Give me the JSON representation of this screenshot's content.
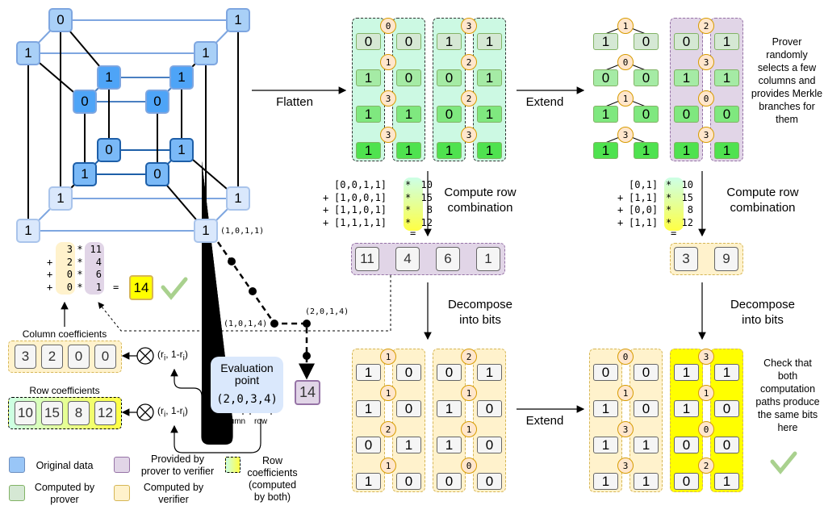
{
  "cube": {
    "nodes": [
      {
        "v": "0",
        "t": "back"
      },
      {
        "v": "1",
        "t": "back"
      },
      {
        "v": "1",
        "t": "back"
      },
      {
        "v": "1",
        "t": "back"
      },
      {
        "v": "1",
        "t": "inner1"
      },
      {
        "v": "1",
        "t": "inner1"
      },
      {
        "v": "0",
        "t": "inner1"
      },
      {
        "v": "0",
        "t": "inner1"
      },
      {
        "v": "0",
        "t": "inner2"
      },
      {
        "v": "1",
        "t": "inner2"
      },
      {
        "v": "1",
        "t": "inner2"
      },
      {
        "v": "0",
        "t": "inner2"
      },
      {
        "v": "1",
        "t": "front"
      },
      {
        "v": "1",
        "t": "front"
      },
      {
        "v": "1",
        "t": "front"
      },
      {
        "v": "1",
        "t": "front"
      }
    ],
    "corner_label": "(1,0,1,1)"
  },
  "path": {
    "p1": "(1,0,1,4)",
    "p2": "(2,0,1,4)",
    "result": "14"
  },
  "labels": {
    "flatten": "Flatten",
    "extend": "Extend",
    "extend2": "Extend",
    "compute1": "Compute row combination",
    "compute2": "Compute row combination",
    "decompose1": "Decompose into bits",
    "decompose2": "Decompose into bits",
    "prover_note": "Prover randomly selects a few columns and provides Merkle branches for them",
    "check_note": "Check that both computation paths produce the same bits here"
  },
  "flat_groups": [
    {
      "nodes": [
        "0",
        "1",
        "3",
        "3"
      ],
      "left": [
        "0",
        "1",
        "1",
        "1"
      ],
      "right": [
        "0",
        "0",
        "1",
        "1"
      ]
    },
    {
      "nodes": [
        "3",
        "2",
        "2",
        "3"
      ],
      "left": [
        "1",
        "0",
        "0",
        "1"
      ],
      "right": [
        "1",
        "1",
        "1",
        "1"
      ]
    }
  ],
  "ext_groups": [
    {
      "nodes": [
        "1",
        "0",
        "1",
        "3"
      ],
      "left": [
        "1",
        "0",
        "1",
        "1"
      ],
      "right": [
        "0",
        "0",
        "0",
        "1"
      ]
    },
    {
      "nodes": [
        "2",
        "3",
        "0",
        "3"
      ],
      "left": [
        "0",
        "1",
        "0",
        "1"
      ],
      "right": [
        "1",
        "1",
        "0",
        "1"
      ]
    }
  ],
  "bits_groups": [
    {
      "nodes": [
        "1",
        "1",
        "2",
        "1"
      ],
      "left": [
        "1",
        "1",
        "0",
        "1"
      ],
      "right": [
        "0",
        "0",
        "1",
        "0"
      ]
    },
    {
      "nodes": [
        "2",
        "1",
        "1",
        "0"
      ],
      "left": [
        "0",
        "1",
        "1",
        "0"
      ],
      "right": [
        "1",
        "0",
        "0",
        "0"
      ]
    }
  ],
  "ext_bits_groups": [
    {
      "nodes": [
        "0",
        "1",
        "3",
        "3"
      ],
      "left": [
        "0",
        "1",
        "1",
        "1"
      ],
      "right": [
        "0",
        "0",
        "1",
        "1"
      ]
    },
    {
      "nodes": [
        "3",
        "1",
        "0",
        "2"
      ],
      "left": [
        "1",
        "1",
        "0",
        "0"
      ],
      "right": [
        "1",
        "0",
        "0",
        "1"
      ]
    }
  ],
  "row_comb1": {
    "vectors": [
      "[0,0,1,1]",
      "[1,0,0,1]",
      "[1,1,0,1]",
      "[1,1,1,1]"
    ],
    "ops": [
      " ",
      "+",
      "+",
      "+"
    ],
    "coeffs": [
      "10",
      "15",
      "8",
      "12"
    ],
    "eq": "=",
    "result": [
      "11",
      "4",
      "6",
      "1"
    ]
  },
  "row_comb2": {
    "vectors": [
      "[0,1]",
      "[1,1]",
      "[0,0]",
      "[1,1]"
    ],
    "ops": [
      " ",
      "+",
      "+",
      "+"
    ],
    "coeffs": [
      "10",
      "15",
      "8",
      "12"
    ],
    "eq": "=",
    "result": [
      "3",
      "9"
    ]
  },
  "col_comb": {
    "a": [
      "3",
      "2",
      "0",
      "0"
    ],
    "b": [
      "11",
      "4",
      "6",
      "1"
    ],
    "ops": [
      " ",
      "+",
      "+",
      "+"
    ],
    "eq": "=",
    "result": "14"
  },
  "column_coefficients": {
    "title": "Column coefficients",
    "values": [
      "3",
      "2",
      "0",
      "0"
    ]
  },
  "row_coefficients": {
    "title": "Row coefficients",
    "values": [
      "10",
      "15",
      "8",
      "12"
    ]
  },
  "tensor": "(r",
  "tensor_sub": "i",
  "tensor_mid": ", 1-r",
  "tensor_end": ")",
  "eval_point": {
    "title": "Evaluation point",
    "value": "(2,0,3,4)",
    "column": "column",
    "row": "row"
  },
  "legend": [
    {
      "label": "Original data",
      "color": "#99c6f7"
    },
    {
      "label": "Computed by prover",
      "color": "#d5e8d4"
    },
    {
      "label": "Provided by prover to verifier",
      "color": "#e1d5e7"
    },
    {
      "label": "Computed by verifier",
      "color": "#fff2cc"
    },
    {
      "label": "Row coefficients (computed by both)",
      "color": "gradient"
    }
  ],
  "colors": {
    "leaf_rows": [
      "#d5e8d4",
      "#a5eba5",
      "#7fe87f",
      "#4fe24f"
    ],
    "purple": "#e1d5e7",
    "beige": "#fff2cc",
    "yellow": "#ffff00",
    "check": "#a9d18e"
  }
}
